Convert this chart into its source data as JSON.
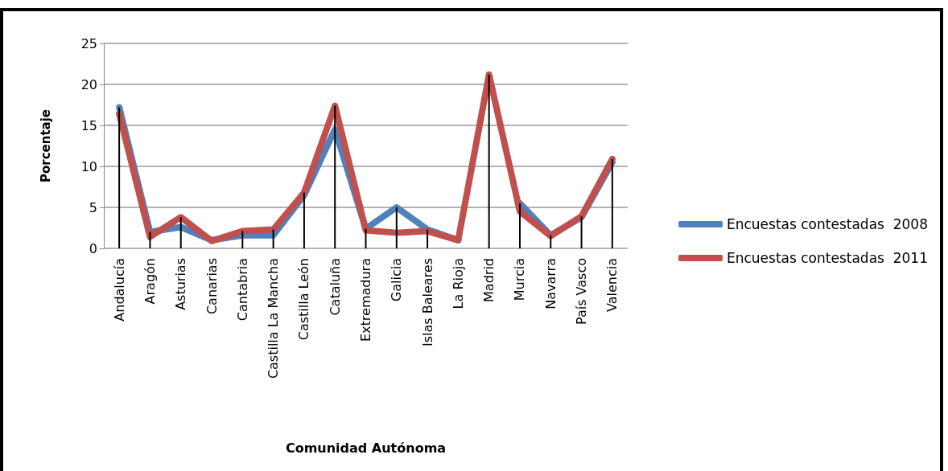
{
  "chart_data": {
    "type": "line",
    "xlabel": "Comunidad Autónoma",
    "ylabel": "Porcentaje",
    "categories": [
      "Andalucía",
      "Aragón",
      "Asturias",
      "Canarias",
      "Cantabria",
      "Castilla La Mancha",
      "Castilla León",
      "Cataluña",
      "Extremadura",
      "Galicia",
      "Islas Baleares",
      "La Rioja",
      "Madrid",
      "Murcia",
      "Navarra",
      "País Vasco",
      "Valencia"
    ],
    "series": [
      {
        "name": "Encuestas contestadas  2008",
        "color": "#4f81bd",
        "values": [
          17.2,
          2.0,
          2.6,
          1.0,
          1.6,
          1.6,
          6.5,
          14.5,
          2.4,
          5.0,
          2.3,
          1.0,
          null,
          5.5,
          1.6,
          3.8,
          10.5
        ],
        "errors": [
          [
            0,
            17.2
          ],
          [
            0,
            2.0
          ],
          null,
          null,
          null,
          null,
          null,
          null,
          [
            0,
            2.4
          ],
          [
            0,
            5.0
          ],
          [
            0,
            2.3
          ],
          null,
          null,
          [
            0,
            5.5
          ],
          [
            0,
            1.6
          ],
          null,
          null
        ]
      },
      {
        "name": "Encuestas contestadas  2011",
        "color": "#c0504d",
        "values": [
          16.4,
          1.4,
          3.8,
          0.9,
          2.1,
          2.3,
          6.8,
          17.4,
          2.2,
          1.9,
          2.1,
          1.0,
          21.2,
          4.5,
          1.5,
          3.9,
          10.9
        ],
        "errors": [
          null,
          null,
          [
            0,
            3.8
          ],
          null,
          [
            0,
            2.1
          ],
          [
            0,
            2.3
          ],
          [
            0,
            6.8
          ],
          [
            0,
            17.4
          ],
          null,
          null,
          null,
          null,
          [
            0,
            21.2
          ],
          null,
          null,
          [
            0,
            3.9
          ],
          [
            0,
            10.9
          ]
        ]
      }
    ],
    "ylim": [
      0,
      25
    ],
    "yticks": [
      0,
      5,
      10,
      15,
      20,
      25
    ],
    "grid": "y",
    "legend": "right",
    "marker": "none",
    "line_style": "solid"
  }
}
